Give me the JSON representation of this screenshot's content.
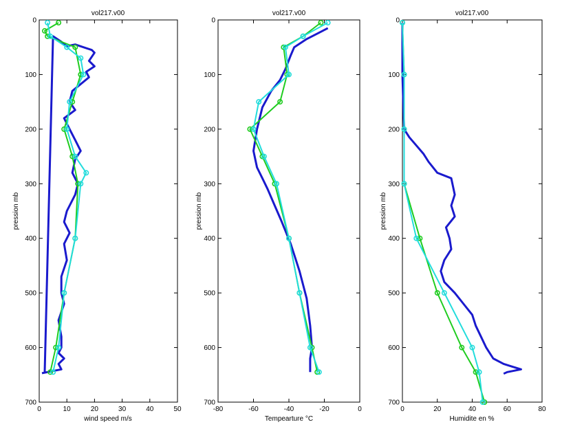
{
  "chart_data": [
    {
      "type": "line",
      "title": "vol217.v00",
      "xlabel": "wind speed m/s",
      "ylabel": "pression mb",
      "xlim": [
        0,
        50
      ],
      "ylim": [
        0,
        700
      ],
      "y_reversed": true,
      "xticks": [
        "0",
        "10",
        "20",
        "30",
        "40",
        "50"
      ],
      "yticks": [
        "0",
        "100",
        "200",
        "300",
        "400",
        "500",
        "600",
        "700"
      ],
      "grid": false,
      "series": [
        {
          "color": "#1a1acd",
          "style": "line",
          "x": [
            2,
            5,
            8,
            10,
            13,
            19,
            20,
            18,
            20,
            17,
            18,
            12,
            11,
            13,
            9,
            11,
            13,
            15,
            13,
            12,
            14,
            13,
            10,
            9,
            11,
            9,
            10,
            8,
            8,
            9,
            7,
            8,
            8,
            7,
            9,
            7,
            8,
            5,
            1
          ],
          "y": [
            645,
            30,
            40,
            48,
            45,
            55,
            60,
            75,
            85,
            95,
            105,
            130,
            150,
            165,
            180,
            200,
            220,
            240,
            255,
            280,
            300,
            320,
            350,
            370,
            390,
            410,
            440,
            470,
            500,
            520,
            550,
            580,
            600,
            610,
            620,
            630,
            640,
            643,
            647
          ]
        },
        {
          "color": "#1fcc1f",
          "style": "line-marker",
          "x": [
            7,
            2,
            3,
            13,
            15,
            12,
            9,
            12,
            14,
            13,
            9,
            6,
            4
          ],
          "y": [
            5,
            20,
            30,
            50,
            100,
            150,
            200,
            250,
            300,
            400,
            500,
            600,
            645
          ]
        },
        {
          "color": "#22dcdc",
          "style": "line-marker",
          "x": [
            3,
            4,
            10,
            15,
            16,
            11,
            10,
            13,
            17,
            15,
            13,
            9,
            7,
            5
          ],
          "y": [
            5,
            30,
            50,
            70,
            100,
            150,
            200,
            250,
            280,
            300,
            400,
            500,
            600,
            645
          ]
        }
      ]
    },
    {
      "type": "line",
      "title": "vol217.v00",
      "xlabel": "Tempearture °C",
      "ylabel": "pression mb",
      "xlim": [
        -80,
        0
      ],
      "ylim": [
        0,
        700
      ],
      "y_reversed": true,
      "xticks": [
        "-80",
        "-60",
        "-40",
        "-20",
        "0"
      ],
      "yticks": [
        "0",
        "100",
        "200",
        "300",
        "400",
        "500",
        "600",
        "700"
      ],
      "grid": false,
      "series": [
        {
          "color": "#1a1acd",
          "style": "line",
          "x": [
            -18,
            -24,
            -30,
            -37,
            -39,
            -42,
            -45,
            -50,
            -55,
            -58,
            -60,
            -58,
            -55,
            -52,
            -48,
            -44,
            -39,
            -34,
            -30,
            -28,
            -27,
            -28,
            -28
          ],
          "y": [
            15,
            25,
            35,
            50,
            65,
            90,
            110,
            130,
            160,
            200,
            240,
            270,
            290,
            310,
            340,
            370,
            410,
            460,
            510,
            560,
            600,
            620,
            645
          ]
        },
        {
          "color": "#1fcc1f",
          "style": "line-marker",
          "x": [
            -22,
            -32,
            -43,
            -41,
            -45,
            -62,
            -55,
            -48,
            -40,
            -34,
            -27,
            -24
          ],
          "y": [
            5,
            30,
            50,
            100,
            150,
            200,
            250,
            300,
            400,
            500,
            600,
            645
          ]
        },
        {
          "color": "#22dcdc",
          "style": "line-marker",
          "x": [
            -18,
            -32,
            -42,
            -40,
            -57,
            -60,
            -54,
            -47,
            -40,
            -34,
            -28,
            -23
          ],
          "y": [
            5,
            30,
            50,
            100,
            150,
            200,
            250,
            300,
            400,
            500,
            600,
            645
          ]
        }
      ]
    },
    {
      "type": "line",
      "title": "vol217.v00",
      "xlabel": "Humidite en %",
      "ylabel": "pression mb",
      "xlim": [
        0,
        80
      ],
      "ylim": [
        0,
        700
      ],
      "y_reversed": true,
      "xticks": [
        "0",
        "20",
        "40",
        "60",
        "80"
      ],
      "yticks": [
        "0",
        "100",
        "200",
        "300",
        "400",
        "500",
        "600",
        "700"
      ],
      "grid": false,
      "series": [
        {
          "color": "#1a1acd",
          "style": "line",
          "x": [
            0,
            0,
            0,
            1,
            4,
            8,
            12,
            15,
            20,
            28,
            30,
            28,
            30,
            25,
            27,
            28,
            24,
            22,
            24,
            30,
            35,
            40,
            42,
            45,
            48,
            52,
            58,
            63,
            68,
            60,
            58
          ],
          "y": [
            5,
            50,
            100,
            200,
            215,
            230,
            245,
            260,
            280,
            290,
            320,
            340,
            360,
            380,
            400,
            420,
            440,
            460,
            480,
            500,
            520,
            540,
            560,
            580,
            600,
            620,
            630,
            635,
            640,
            645,
            648
          ]
        },
        {
          "color": "#1fcc1f",
          "style": "line-marker",
          "x": [
            0,
            1,
            1,
            1,
            10,
            20,
            34,
            42,
            47
          ],
          "y": [
            5,
            100,
            200,
            300,
            400,
            500,
            600,
            645,
            700
          ]
        },
        {
          "color": "#22dcdc",
          "style": "line-marker",
          "x": [
            0,
            1,
            1,
            1,
            8,
            24,
            40,
            44,
            46
          ],
          "y": [
            5,
            100,
            200,
            300,
            400,
            500,
            600,
            645,
            700
          ]
        }
      ]
    }
  ]
}
